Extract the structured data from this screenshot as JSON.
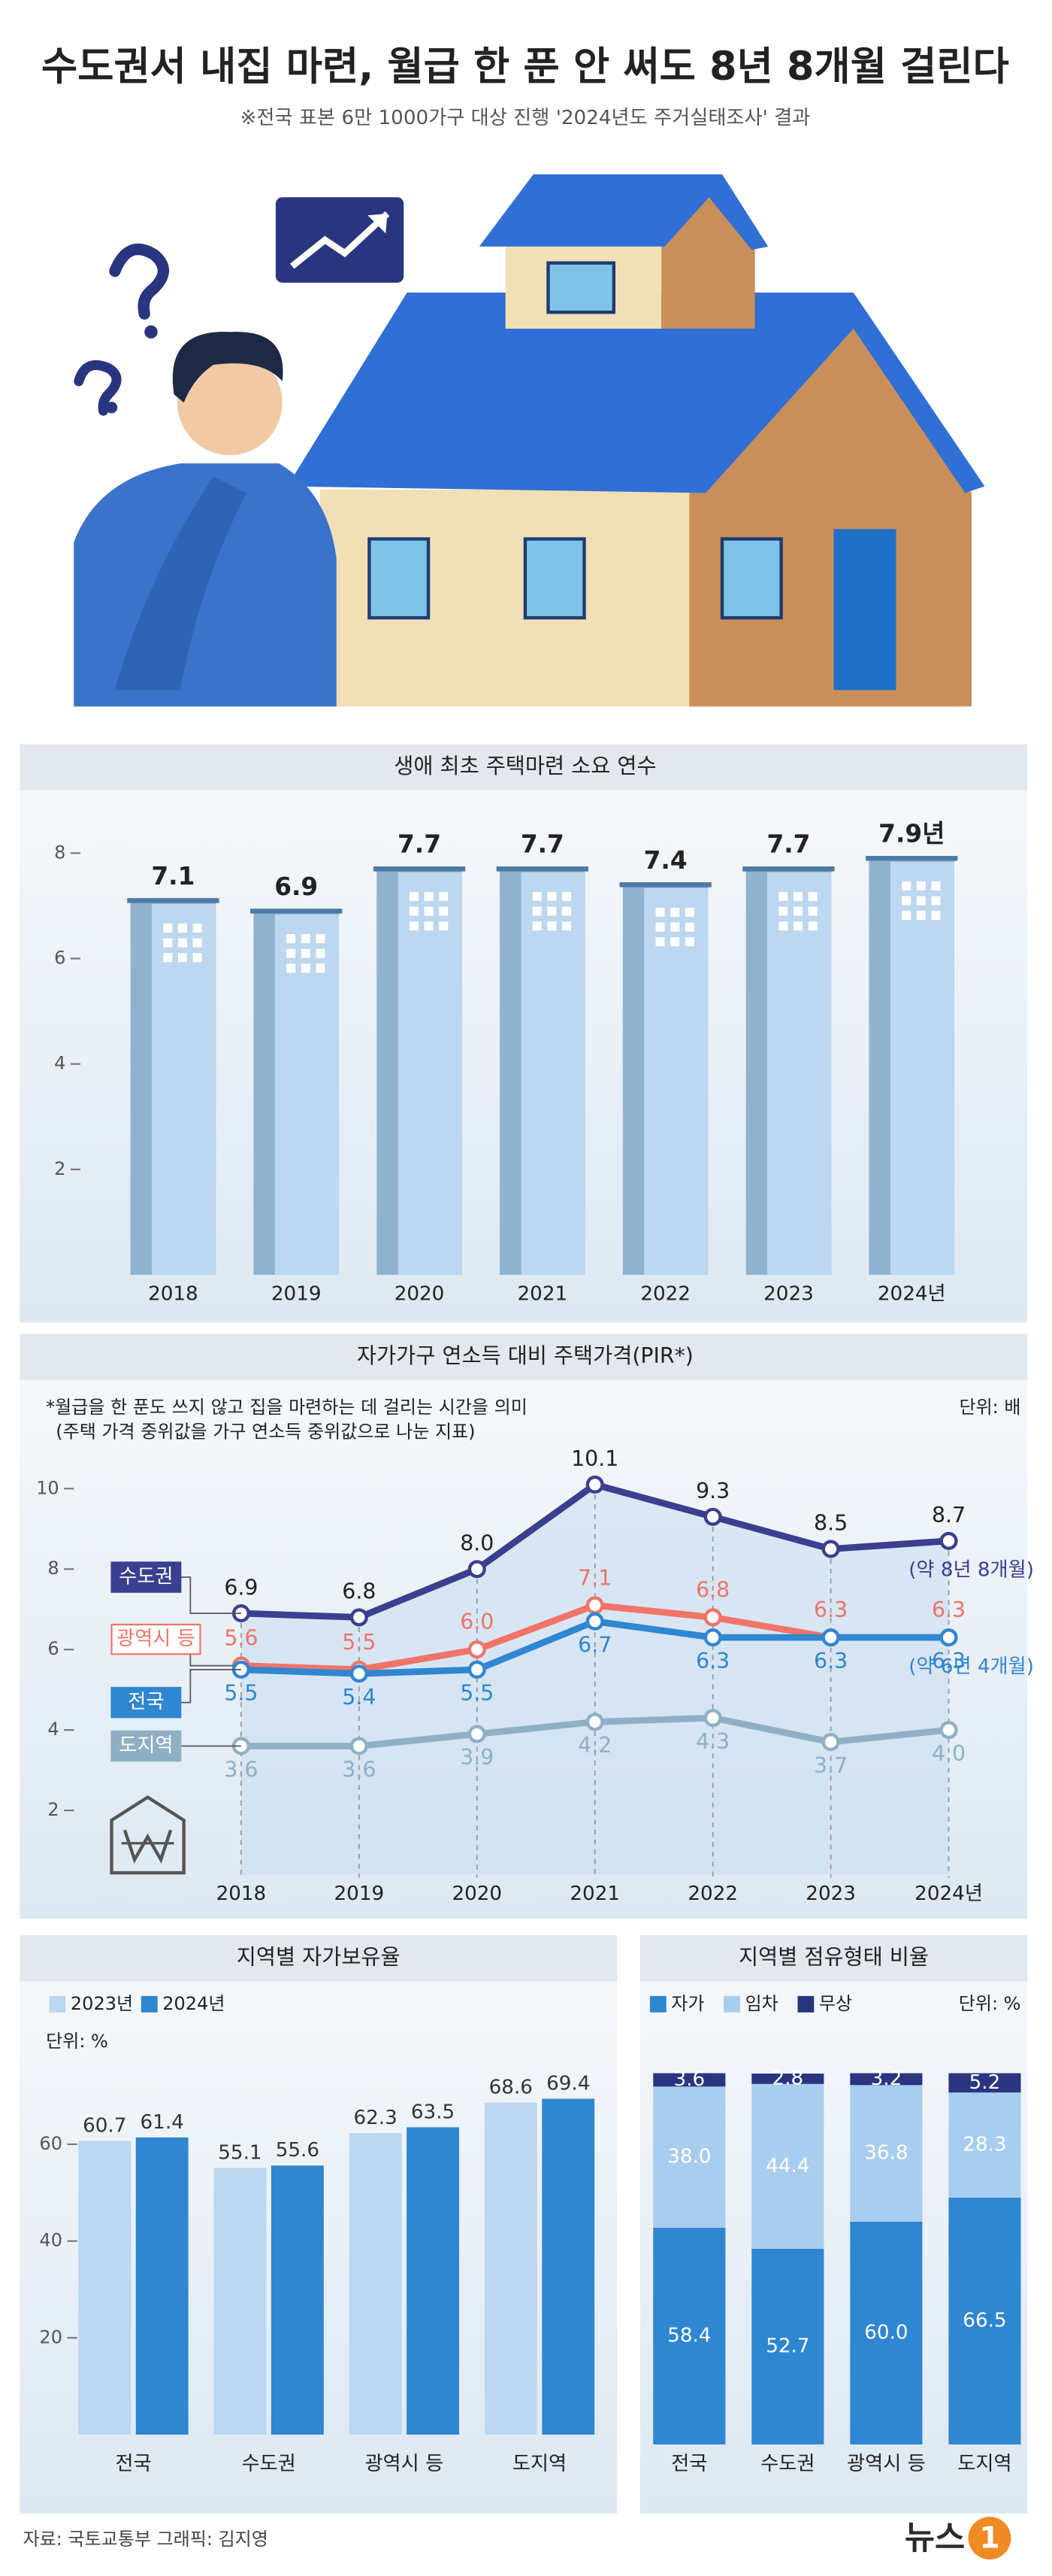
{
  "title": "수도권서 내집 마련, 월급 한 푼 안 써도 8년 8개월 걸린다",
  "subtitle": "※전국 표본 6만 1000가구 대상 진행 '2024년도 주거실태조사' 결과",
  "source": "자료: 국토교통부  그래픽: 김지영",
  "logo_text": "뉴스",
  "logo_mark": "1",
  "chart_data": [
    {
      "type": "bar",
      "title": "생애 최초 주택마련 소요 연수",
      "categories": [
        "2018",
        "2019",
        "2020",
        "2021",
        "2022",
        "2023",
        "2024년"
      ],
      "values": [
        7.1,
        6.9,
        7.7,
        7.7,
        7.4,
        7.7,
        7.9
      ],
      "value_labels": [
        "7.1",
        "6.9",
        "7.7",
        "7.7",
        "7.4",
        "7.7",
        "7.9년"
      ],
      "color": "#bcd7ef",
      "side_color": "#8fb3cf",
      "ylim": [
        0,
        8.6
      ],
      "yticks": [
        2,
        4,
        6,
        8
      ]
    },
    {
      "type": "line",
      "title": "자가가구 연소득 대비 주택가격(PIR*)",
      "notes": [
        "*월급을 한 푼도 쓰지 않고 집을 마련하는 데 걸리는 시간을 의미",
        "(주택 가격 중위값을 가구 연소득 중위값으로 나눈 지표)"
      ],
      "unit": "단위: 배",
      "categories": [
        "2018",
        "2019",
        "2020",
        "2021",
        "2022",
        "2023",
        "2024년"
      ],
      "series": [
        {
          "name": "수도권",
          "color": "#3a3f8f",
          "values": [
            6.9,
            6.8,
            8.0,
            10.1,
            9.3,
            8.5,
            8.7
          ],
          "value_labels": [
            "6.9",
            "6.8",
            "8.0",
            "10.1",
            "9.3",
            "8.5",
            "8.7"
          ]
        },
        {
          "name": "광역시 등",
          "color": "#f07468",
          "values": [
            5.6,
            5.5,
            6.0,
            7.1,
            6.8,
            6.3,
            6.3
          ],
          "value_labels": [
            "5.6",
            "5.5",
            "6.0",
            "7.1",
            "6.8",
            "6.3",
            "6.3"
          ]
        },
        {
          "name": "전국",
          "color": "#2f86d1",
          "values": [
            5.5,
            5.4,
            5.5,
            6.7,
            6.3,
            6.3,
            6.3
          ],
          "value_labels": [
            "5.5",
            "5.4",
            "5.5",
            "6.7",
            "6.3",
            "6.3",
            "6.3"
          ]
        },
        {
          "name": "도지역",
          "color": "#8fb0c4",
          "values": [
            3.6,
            3.6,
            3.9,
            4.2,
            4.3,
            3.7,
            4.0
          ],
          "value_labels": [
            "3.6",
            "3.6",
            "3.9",
            "4.2",
            "4.3",
            "3.7",
            "4.0"
          ]
        }
      ],
      "annotations": [
        "(약 8년 8개월)",
        "(약 6년 4개월)"
      ],
      "ylim": [
        0,
        10.7
      ],
      "yticks": [
        2,
        4,
        6,
        8,
        10
      ]
    },
    {
      "type": "bar",
      "title": "지역별 자가보유율",
      "unit": "단위: %",
      "categories": [
        "전국",
        "수도권",
        "광역시 등",
        "도지역"
      ],
      "series": [
        {
          "name": "2023년",
          "color": "#bcd7ef",
          "values": [
            60.7,
            55.1,
            62.3,
            68.6
          ]
        },
        {
          "name": "2024년",
          "color": "#2f86d1",
          "values": [
            61.4,
            55.6,
            63.5,
            69.4
          ]
        }
      ],
      "ylim": [
        0,
        74
      ],
      "yticks": [
        20,
        40,
        60
      ]
    },
    {
      "type": "bar",
      "stacked": true,
      "title": "지역별 점유형태 비율",
      "unit": "단위: %",
      "categories": [
        "전국",
        "수도권",
        "광역시 등",
        "도지역"
      ],
      "series": [
        {
          "name": "자가",
          "color": "#2f86d1",
          "values": [
            58.4,
            52.7,
            60.0,
            66.5
          ],
          "value_labels": [
            "58.4",
            "52.7",
            "60.0",
            "66.5"
          ]
        },
        {
          "name": "임차",
          "color": "#a9cdef",
          "values": [
            38.0,
            44.4,
            36.8,
            28.3
          ],
          "value_labels": [
            "38.0",
            "44.4",
            "36.8",
            "28.3"
          ]
        },
        {
          "name": "무상",
          "color": "#2a3580",
          "values": [
            3.6,
            2.8,
            3.2,
            5.2
          ]
        }
      ],
      "ylim": [
        0,
        100
      ]
    }
  ]
}
